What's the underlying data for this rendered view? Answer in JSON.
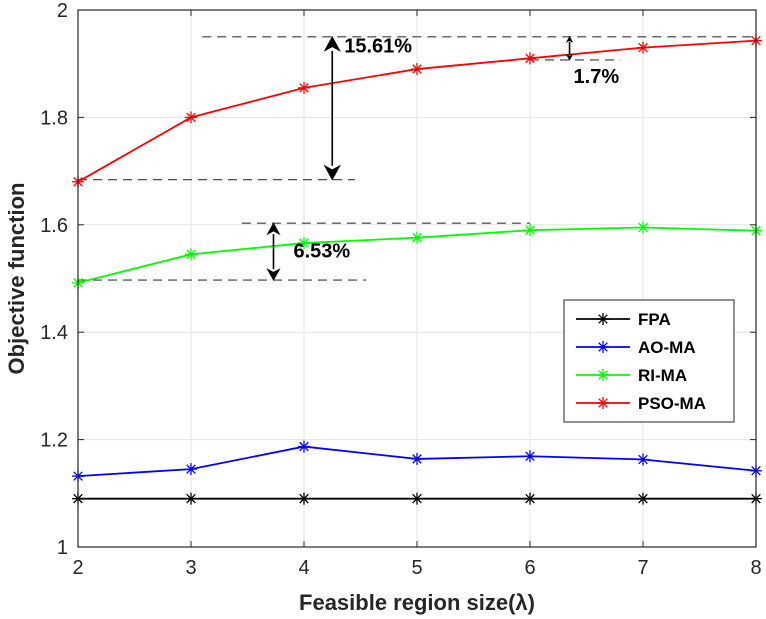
{
  "chart_data": {
    "type": "line",
    "xlabel": "Feasible region size(λ)",
    "ylabel": "Objective function",
    "x": [
      2,
      3,
      4,
      5,
      6,
      7,
      8
    ],
    "xlim": [
      2,
      8
    ],
    "ylim": [
      1,
      2
    ],
    "xticks": [
      "2",
      "3",
      "4",
      "5",
      "6",
      "7",
      "8"
    ],
    "yticks": [
      "1",
      "1.2",
      "1.4",
      "1.6",
      "1.8",
      "2"
    ],
    "grid": true,
    "legend_position": "right",
    "series": [
      {
        "name": "FPA",
        "color": "#000000",
        "values": [
          1.09,
          1.09,
          1.09,
          1.09,
          1.09,
          1.09,
          1.09
        ]
      },
      {
        "name": "AO-MA",
        "color": "#0000ff",
        "values": [
          1.132,
          1.145,
          1.187,
          1.164,
          1.169,
          1.163,
          1.142
        ]
      },
      {
        "name": "RI-MA",
        "color": "#00ff00",
        "values": [
          1.492,
          1.545,
          1.566,
          1.576,
          1.59,
          1.595,
          1.589
        ]
      },
      {
        "name": "PSO-MA",
        "color": "#ff0000",
        "values": [
          1.68,
          1.8,
          1.855,
          1.89,
          1.91,
          1.93,
          1.943
        ]
      }
    ],
    "annotations": [
      {
        "text": "15.61%",
        "from_y": 1.684,
        "to_y": 1.95,
        "x_arrow": 4.25
      },
      {
        "text": "6.53%",
        "from_y": 1.497,
        "to_y": 1.603,
        "x_arrow": 3.73
      },
      {
        "text": "1.7%",
        "from_y": 1.907,
        "to_y": 1.95,
        "x_arrow": 6.35
      }
    ]
  }
}
